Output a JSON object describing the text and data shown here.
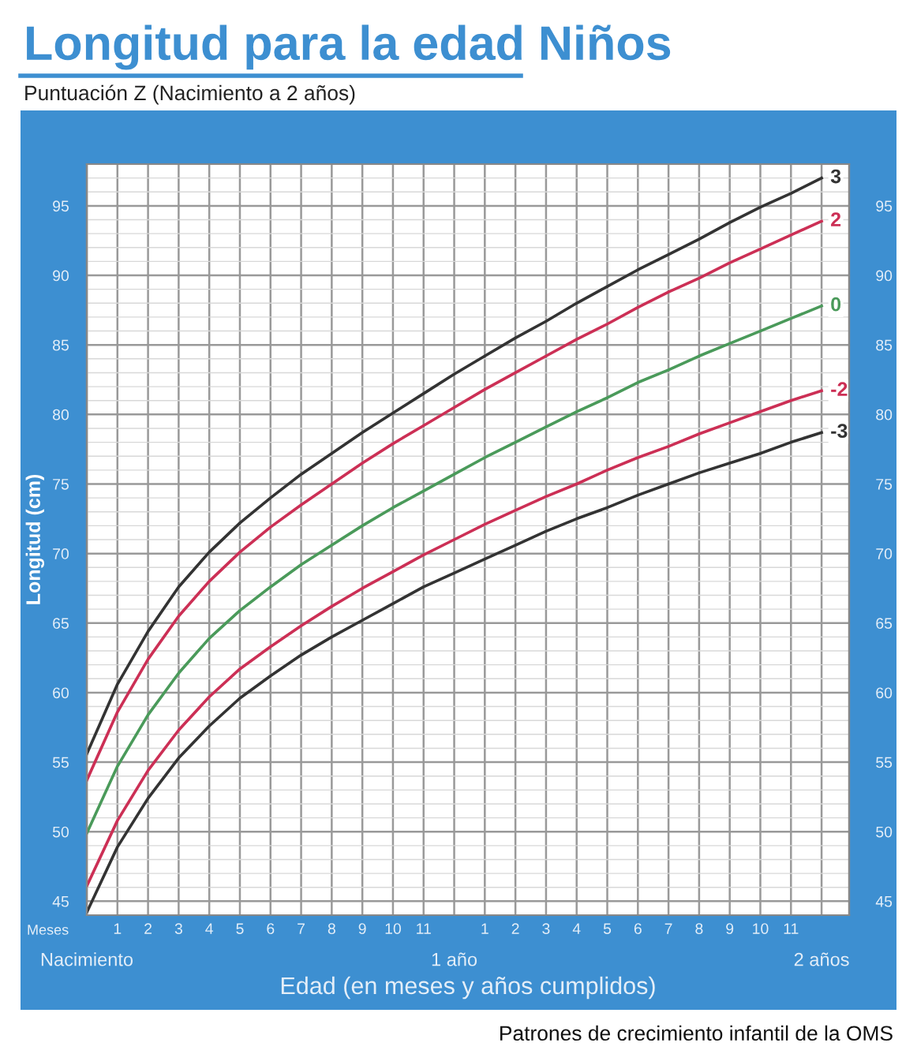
{
  "chart_data": {
    "type": "line",
    "title": "Longitud para la edad Niños",
    "subtitle": "Puntuación Z (Nacimiento a 2 años)",
    "xlabel": "Edad (en meses y años cumplidos)",
    "ylabel": "Longitud (cm)",
    "annotations": [
      "Meses",
      "Nacimiento",
      "1 año",
      "2 años",
      "Patrones de crecimiento infantil de la OMS"
    ],
    "categories": [
      null,
      "1",
      "2",
      "3",
      "4",
      "5",
      "6",
      "7",
      "8",
      "9",
      "10",
      "11",
      null,
      "1",
      "2",
      "3",
      "4",
      "5",
      "6",
      "7",
      "8",
      "9",
      "10",
      "11",
      null
    ],
    "series": [
      {
        "name": "3",
        "color": "#333333",
        "values": [
          55.6,
          60.6,
          64.4,
          67.6,
          70.1,
          72.2,
          74.0,
          75.7,
          77.2,
          78.7,
          80.1,
          81.5,
          82.9,
          84.2,
          85.5,
          86.7,
          88.0,
          89.2,
          90.4,
          91.5,
          92.6,
          93.8,
          94.9,
          95.9,
          97.0
        ]
      },
      {
        "name": "2",
        "color": "#cc2f55",
        "values": [
          53.7,
          58.6,
          62.4,
          65.5,
          68.0,
          70.1,
          71.9,
          73.5,
          75.0,
          76.5,
          77.9,
          79.2,
          80.5,
          81.8,
          83.0,
          84.2,
          85.4,
          86.5,
          87.7,
          88.8,
          89.8,
          90.9,
          91.9,
          92.9,
          93.9
        ]
      },
      {
        "name": "0",
        "color": "#4a9a5a",
        "values": [
          49.9,
          54.7,
          58.4,
          61.4,
          63.9,
          65.9,
          67.6,
          69.2,
          70.6,
          72.0,
          73.3,
          74.5,
          75.7,
          76.9,
          78.0,
          79.1,
          80.2,
          81.2,
          82.3,
          83.2,
          84.2,
          85.1,
          86.0,
          86.9,
          87.8
        ]
      },
      {
        "name": "-2",
        "color": "#cc2f55",
        "values": [
          46.1,
          50.8,
          54.4,
          57.3,
          59.7,
          61.7,
          63.3,
          64.8,
          66.2,
          67.5,
          68.7,
          69.9,
          71.0,
          72.1,
          73.1,
          74.1,
          75.0,
          76.0,
          76.9,
          77.7,
          78.6,
          79.4,
          80.2,
          81.0,
          81.7
        ]
      },
      {
        "name": "-3",
        "color": "#333333",
        "values": [
          44.2,
          48.9,
          52.4,
          55.3,
          57.6,
          59.6,
          61.2,
          62.7,
          64.0,
          65.2,
          66.4,
          67.6,
          68.6,
          69.6,
          70.6,
          71.6,
          72.5,
          73.3,
          74.2,
          75.0,
          75.8,
          76.5,
          77.2,
          78.0,
          78.7
        ]
      }
    ],
    "ylim": [
      44,
      98
    ],
    "yticks": [
      45,
      50,
      55,
      60,
      65,
      70,
      75,
      80,
      85,
      90,
      95
    ],
    "y2lim": [
      44,
      98
    ],
    "y2ticks": [
      45,
      50,
      55,
      60,
      65,
      70,
      75,
      80,
      85,
      90,
      95
    ],
    "grid": true,
    "legend": false,
    "marker": "none",
    "line_style": "solid"
  }
}
